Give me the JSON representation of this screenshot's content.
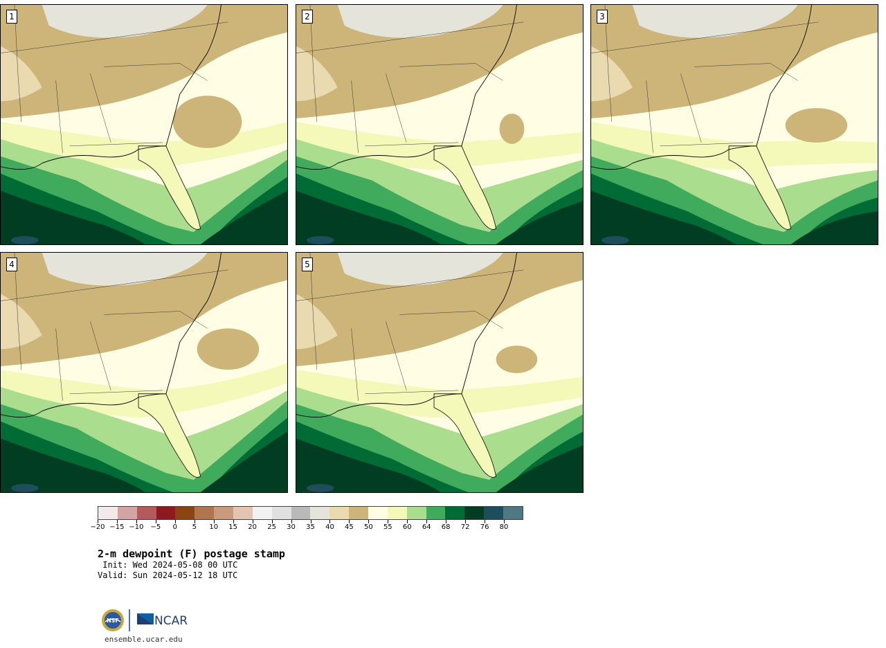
{
  "title": "2-m dewpoint (F) postage stamp",
  "init_label": " Init: Wed 2024-05-08 00 UTC",
  "valid_label": "Valid: Sun 2024-05-12 18 UTC",
  "site": "ensemble.ucar.edu",
  "logo": {
    "org1": "NSF",
    "org2": "NCAR"
  },
  "members": [
    "1",
    "2",
    "3",
    "4",
    "5"
  ],
  "colorbar": {
    "colors": [
      "#f4e9e9",
      "#d4a3a6",
      "#b45a5e",
      "#8c1a1e",
      "#8b4513",
      "#b0754f",
      "#c99a7c",
      "#e2c4b0",
      "#f2f2f2",
      "#e0e0e0",
      "#b9b9b9",
      "#e4e4da",
      "#e9dab0",
      "#cdb57a",
      "#fffee4",
      "#f4f8b8",
      "#aade8e",
      "#41ab5d",
      "#006b35",
      "#003d22",
      "#1e4e5e",
      "#507883"
    ],
    "ticks": [
      "−20",
      "−15",
      "−10",
      "−5",
      "0",
      "5",
      "10",
      "15",
      "20",
      "25",
      "30",
      "35",
      "40",
      "45",
      "50",
      "55",
      "60",
      "64",
      "68",
      "72",
      "76",
      "80"
    ]
  }
}
